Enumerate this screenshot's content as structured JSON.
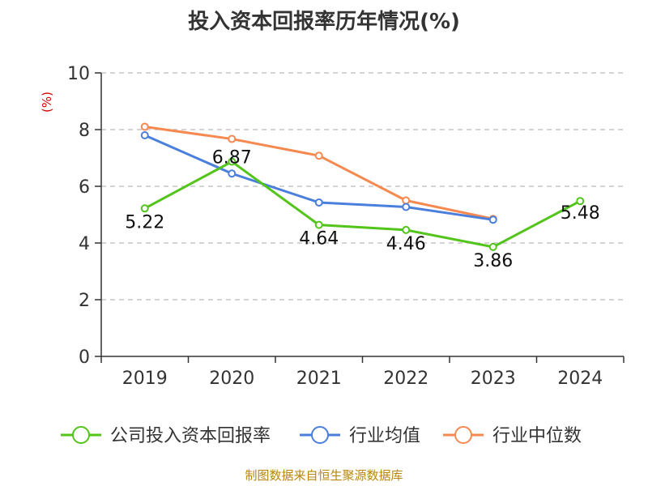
{
  "chart_data": {
    "type": "line",
    "title": "投入资本回报率历年情况(%)",
    "unit_label": "(%)",
    "source": "制图数据来自恒生聚源数据库",
    "categories": [
      "2019",
      "2020",
      "2021",
      "2022",
      "2023",
      "2024"
    ],
    "ylim": [
      0,
      10
    ],
    "yticks": [
      0,
      2,
      4,
      6,
      8,
      10
    ],
    "grid": true,
    "legend_position": "bottom",
    "series": [
      {
        "name": "公司投入资本回报率",
        "color": "#52c41a",
        "values": [
          5.22,
          6.87,
          4.64,
          4.46,
          3.86,
          5.48
        ],
        "labels": [
          "5.22",
          "6.87",
          "4.64",
          "4.46",
          "3.86",
          "5.48"
        ]
      },
      {
        "name": "行业均值",
        "color": "#4a7fdc",
        "values": [
          7.8,
          6.45,
          5.43,
          5.27,
          4.82,
          null
        ]
      },
      {
        "name": "行业中位数",
        "color": "#f5894f",
        "values": [
          8.1,
          7.67,
          7.08,
          5.5,
          4.85,
          null
        ]
      }
    ]
  }
}
